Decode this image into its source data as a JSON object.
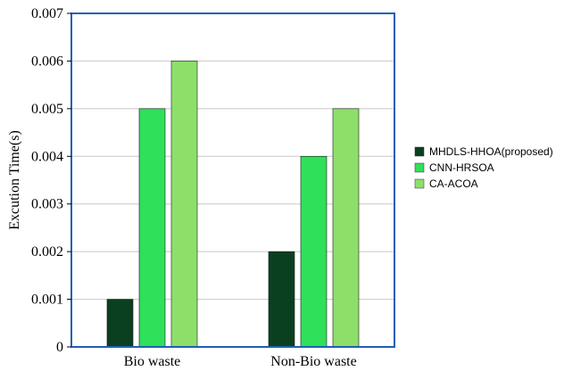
{
  "chart_data": {
    "type": "bar",
    "title": "",
    "xlabel": "",
    "ylabel": "Excution Time(s)",
    "categories": [
      "Bio waste",
      "Non-Bio waste"
    ],
    "series": [
      {
        "name": "MHDLS-HHOA(proposed)",
        "values": [
          0.001,
          0.002
        ],
        "color": "#0a4020"
      },
      {
        "name": "CNN-HRSOA",
        "values": [
          0.005,
          0.004
        ],
        "color": "#2fe05a"
      },
      {
        "name": "CA-ACOA",
        "values": [
          0.006,
          0.005
        ],
        "color": "#8ddf6a"
      }
    ],
    "ylim": [
      0,
      0.007
    ],
    "yticks": [
      "0",
      "0.001",
      "0.002",
      "0.003",
      "0.004",
      "0.005",
      "0.006",
      "0.007"
    ],
    "grid": true,
    "legend": "right",
    "frame_color": "#1f5fb4",
    "grid_color": "#c8c8c8"
  }
}
